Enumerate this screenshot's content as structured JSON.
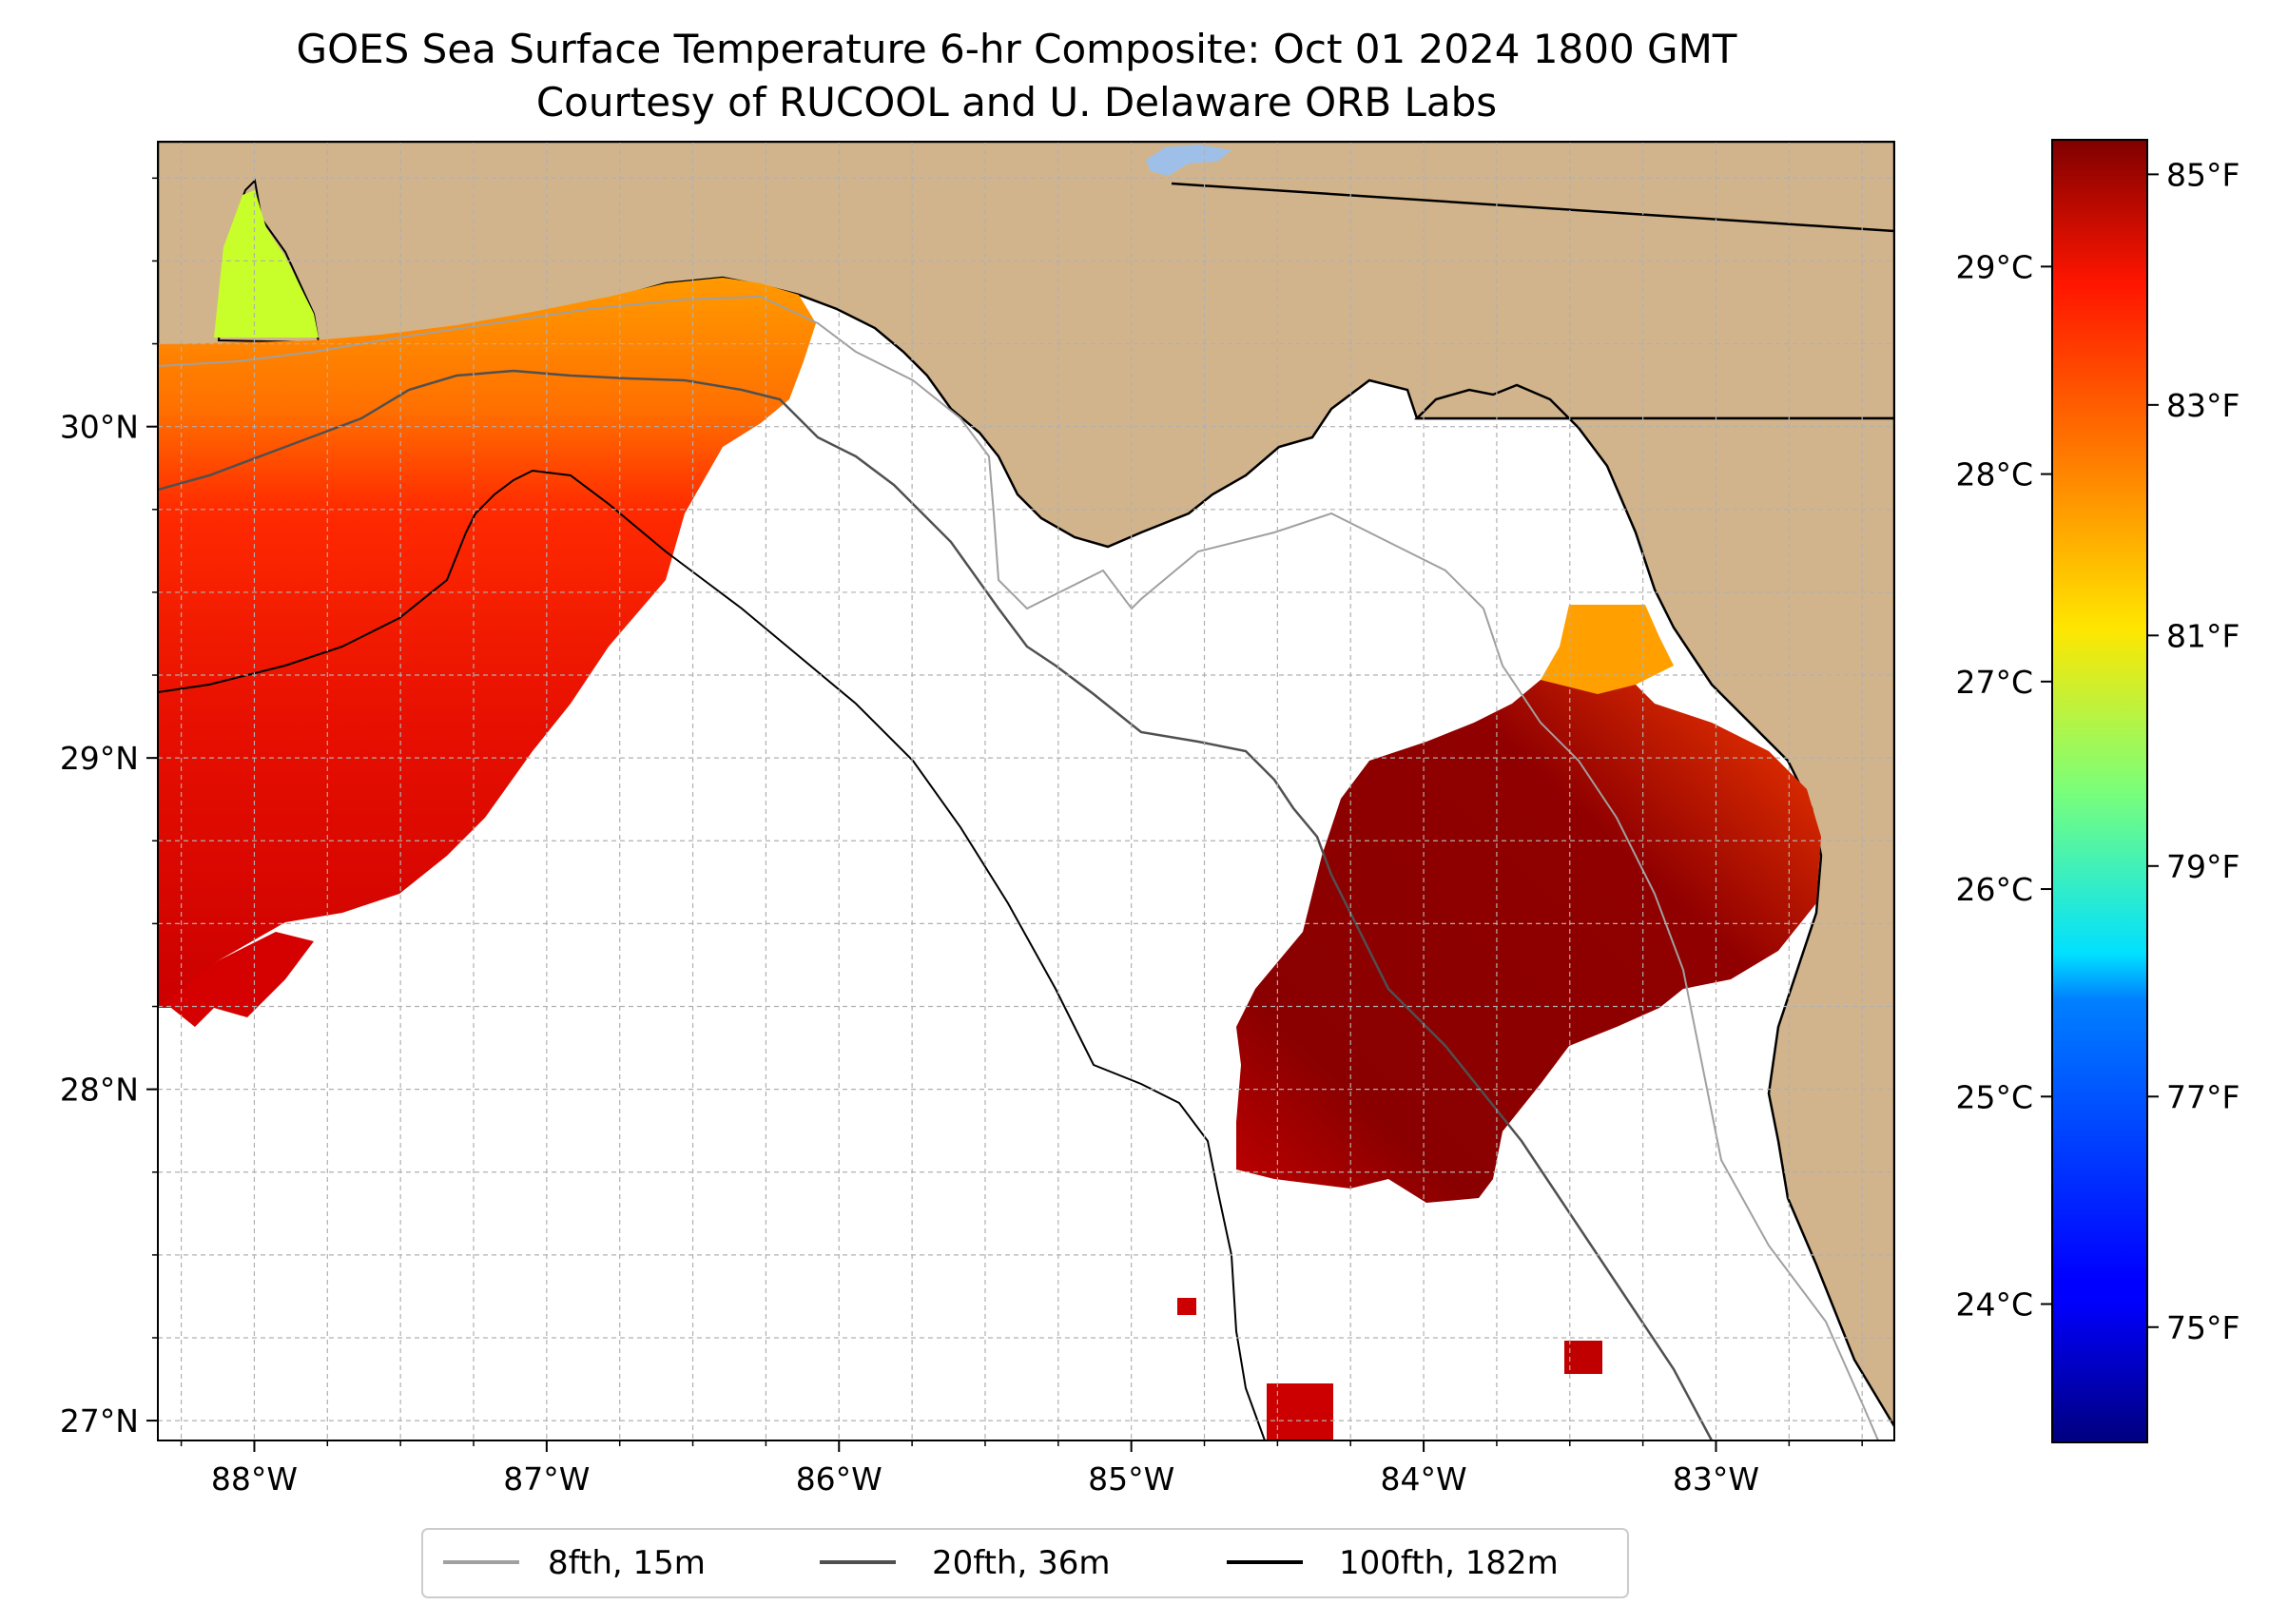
{
  "title": "GOES Sea Surface Temperature 6-hr Composite: Oct 01 2024 1800 GMT",
  "subtitle": "Courtesy of RUCOOL and U. Delaware ORB Labs",
  "map": {
    "extent": {
      "lon_min": -88.33,
      "lon_max": -82.39,
      "lat_min": 26.94,
      "lat_max": 30.86
    },
    "lon_ticks": [
      {
        "value": -88,
        "label": "88°W"
      },
      {
        "value": -87,
        "label": "87°W"
      },
      {
        "value": -86,
        "label": "86°W"
      },
      {
        "value": -85,
        "label": "85°W"
      },
      {
        "value": -84,
        "label": "84°W"
      },
      {
        "value": -83,
        "label": "83°W"
      }
    ],
    "lat_ticks": [
      {
        "value": 27,
        "label": "27°N"
      },
      {
        "value": 28,
        "label": "28°N"
      },
      {
        "value": 29,
        "label": "29°N"
      },
      {
        "value": 30,
        "label": "30°N"
      }
    ],
    "gridlines": true,
    "colors": {
      "land": "#d2b48c",
      "ocean": "#ffffff",
      "lake": "#9ec0e8",
      "grid": "#b0b0b0"
    }
  },
  "colorbar": {
    "colormap": "jet",
    "range_f": [
      74,
      85.3
    ],
    "ticks_f": [
      {
        "value": 75,
        "label": "75°F"
      },
      {
        "value": 77,
        "label": "77°F"
      },
      {
        "value": 79,
        "label": "79°F"
      },
      {
        "value": 81,
        "label": "81°F"
      },
      {
        "value": 83,
        "label": "83°F"
      },
      {
        "value": 85,
        "label": "85°F"
      }
    ],
    "ticks_c": [
      {
        "value": 24,
        "label": "24°C"
      },
      {
        "value": 25,
        "label": "25°C"
      },
      {
        "value": 26,
        "label": "26°C"
      },
      {
        "value": 27,
        "label": "27°C"
      },
      {
        "value": 28,
        "label": "28°C"
      },
      {
        "value": 29,
        "label": "29°C"
      }
    ]
  },
  "legend": {
    "placement": "bottom-center",
    "entries": [
      {
        "label": "8fth, 15m",
        "color": "#a0a0a0"
      },
      {
        "label": "20fth, 36m",
        "color": "#505050"
      },
      {
        "label": "100fth, 182m",
        "color": "#000000"
      }
    ]
  }
}
